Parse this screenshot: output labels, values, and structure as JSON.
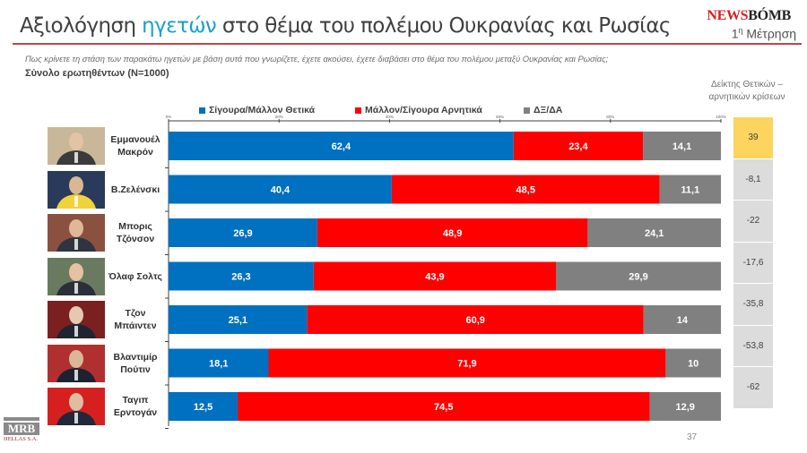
{
  "header": {
    "title_part1": "Αξιολόγηση ",
    "title_highlight": "ηγετών",
    "title_part2": " στο θέμα του πολέμου Ουκρανίας και Ρωσίας",
    "brand_news": "NEWS",
    "brand_bomb": "BÓMB",
    "measurement_prefix": "1",
    "measurement_sup": "η",
    "measurement_label": " Μέτρηση"
  },
  "question": "Πως κρίνετε τη στάση των παρακάτω ηγετών με βάση αυτά που γνωρίζετε, έχετε ακούσει, έχετε διαβάσει στο θέμα του πολέμου μεταξύ Ουκρανίας και Ρωσίας;",
  "sample": "Σύνολο ερωτηθέντων (N=1000)",
  "index_header_line1": "Δείκτης Θετικών –",
  "index_header_line2": "αρνητικών κρίσεων",
  "colors": {
    "positive": "#0070c0",
    "negative": "#ff0000",
    "dk_na": "#808080",
    "index_positive_bg": "#fcd45e",
    "index_negative_bg": "#dcdcdc"
  },
  "chart_data": {
    "type": "bar",
    "orientation": "horizontal",
    "stacked": true,
    "title": "Αξιολόγηση ηγετών στο θέμα του πολέμου Ουκρανίας και Ρωσίας",
    "xlabel": "",
    "ylabel": "",
    "xlim": [
      0,
      100
    ],
    "x_ticks": [
      "0%",
      "20%",
      "40%",
      "60%",
      "80%",
      "100%"
    ],
    "legend_position": "top",
    "grid": false,
    "categories": [
      [
        "Εμμανουέλ",
        "Μακρόν"
      ],
      [
        "Β.Ζελένσκι"
      ],
      [
        "Μπορις",
        "Τζόνσον"
      ],
      [
        "Όλαφ Σολτς"
      ],
      [
        "Τζον",
        "Μπάιντεν"
      ],
      [
        "Βλαντιμίρ",
        "Πούτιν"
      ],
      [
        "Ταγιπ",
        "Ερντογάν"
      ]
    ],
    "series": [
      {
        "name": "Σίγουρα/Μάλλον Θετικά",
        "labels": [
          "62,4",
          "40,4",
          "26,9",
          "26,3",
          "25,1",
          "18,1",
          "12,5"
        ],
        "values": [
          62.4,
          40.4,
          26.9,
          26.3,
          25.1,
          18.1,
          12.5
        ]
      },
      {
        "name": "Μάλλον/Σίγουρα Αρνητικά",
        "labels": [
          "23,4",
          "48,5",
          "48,9",
          "43,9",
          "60,9",
          "71,9",
          "74,5"
        ],
        "values": [
          23.4,
          48.5,
          48.9,
          43.9,
          60.9,
          71.9,
          74.5
        ]
      },
      {
        "name": "ΔΞ/ΔΑ",
        "labels": [
          "14,1",
          "11,1",
          "24,1",
          "29,9",
          "14",
          "10",
          "12,9"
        ],
        "values": [
          14.1,
          11.1,
          24.1,
          29.9,
          14,
          10,
          12.9
        ]
      }
    ],
    "index_values": [
      "39",
      "-8,1",
      "-22",
      "-17,6",
      "-35,8",
      "-53,8",
      "-62"
    ]
  },
  "footer": {
    "logo_text": "MRB",
    "logo_subtext": "HELLAS S.A.",
    "page_number": "37"
  }
}
